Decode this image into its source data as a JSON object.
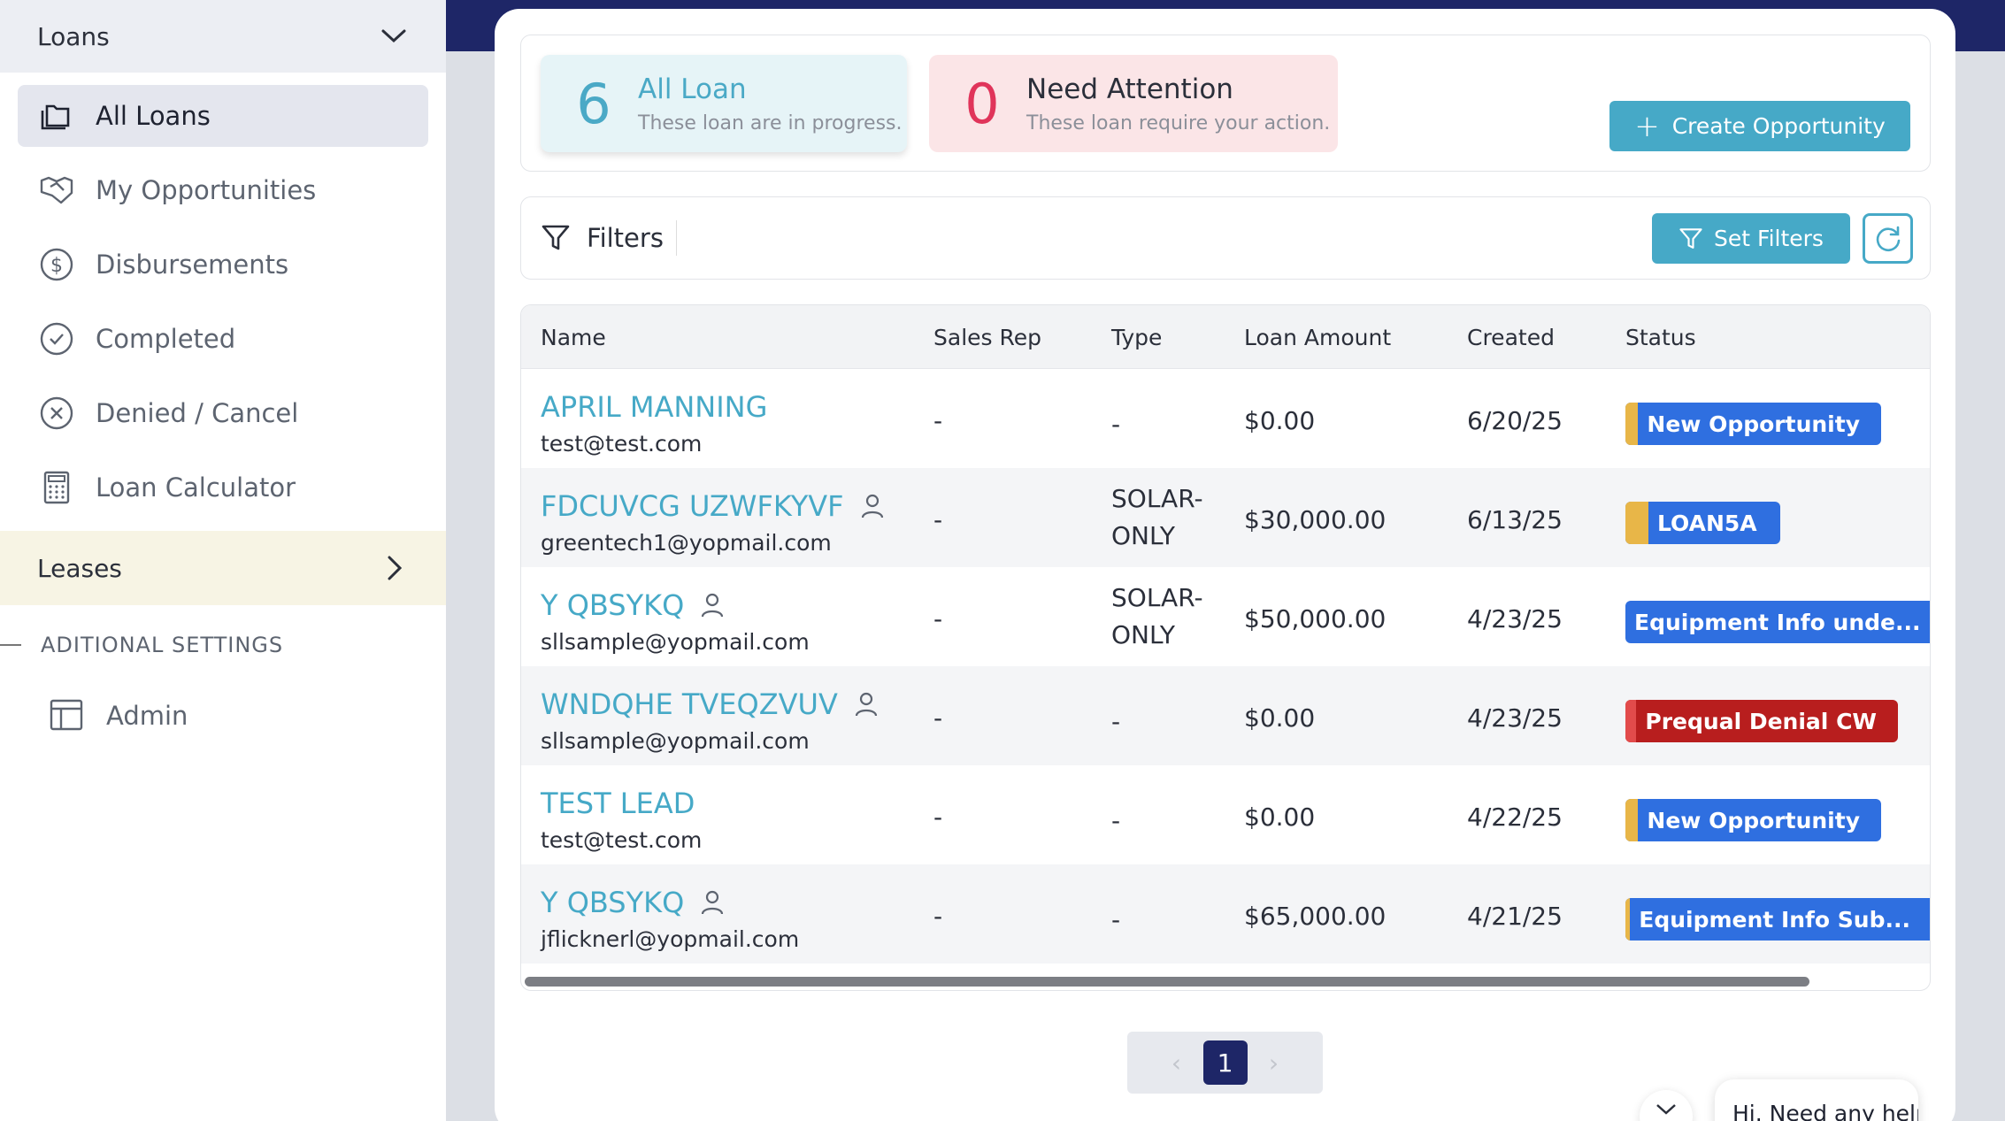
{
  "sidebar": {
    "loans_header": "Loans",
    "items": [
      {
        "label": "All Loans",
        "icon": "folders-icon",
        "active": true
      },
      {
        "label": "My Opportunities",
        "icon": "handshake-icon"
      },
      {
        "label": "Disbursements",
        "icon": "dollar-circle-icon"
      },
      {
        "label": "Completed",
        "icon": "check-circle-icon"
      },
      {
        "label": "Denied / Cancel",
        "icon": "x-circle-icon"
      },
      {
        "label": "Loan Calculator",
        "icon": "calculator-icon"
      }
    ],
    "leases_header": "Leases",
    "section_label": "ADITIONAL SETTINGS",
    "admin_label": "Admin"
  },
  "stats": {
    "all_loan": {
      "count": "6",
      "title": "All Loan",
      "subtitle": "These loan are in progress."
    },
    "need_attention": {
      "count": "0",
      "title": "Need Attention",
      "subtitle": "These loan require your action."
    }
  },
  "actions": {
    "create_opportunity": "Create Opportunity",
    "filters_label": "Filters",
    "set_filters": "Set Filters"
  },
  "table": {
    "headers": [
      "Name",
      "Sales Rep",
      "Type",
      "Loan Amount",
      "Created",
      "Status"
    ],
    "rows": [
      {
        "name": "APRIL MANNING",
        "email": "test@test.com",
        "has_user_icon": false,
        "sales_rep": "-",
        "type_line1": "-",
        "type_line2": "",
        "amount": "$0.00",
        "created": "6/20/25",
        "status": "New Opportunity",
        "status_color": "#2f6fe0",
        "status_strip": "#e8b648"
      },
      {
        "name": "FDCUVCG UZWFKYVF",
        "email": "greentech1@yopmail.com",
        "has_user_icon": true,
        "sales_rep": "-",
        "type_line1": "SOLAR-",
        "type_line2": "ONLY",
        "amount": "$30,000.00",
        "created": "6/13/25",
        "status": "LOAN5A",
        "status_color": "#2f6fe0",
        "status_strip": "#e8b648"
      },
      {
        "name": "Y QBSYKQ",
        "email": "sllsample@yopmail.com",
        "has_user_icon": true,
        "sales_rep": "-",
        "type_line1": "SOLAR-",
        "type_line2": "ONLY",
        "amount": "$50,000.00",
        "created": "4/23/25",
        "status": "Equipment Info unde...",
        "status_color": "#2f6fe0",
        "status_strip": "#e8b648"
      },
      {
        "name": "WNDQHE TVEQZVUV",
        "email": "sllsample@yopmail.com",
        "has_user_icon": true,
        "sales_rep": "-",
        "type_line1": "-",
        "type_line2": "",
        "amount": "$0.00",
        "created": "4/23/25",
        "status": "Prequal Denial CW",
        "status_color": "#b81e1e",
        "status_strip": "#e24b4b"
      },
      {
        "name": "TEST LEAD",
        "email": "test@test.com",
        "has_user_icon": false,
        "sales_rep": "-",
        "type_line1": "-",
        "type_line2": "",
        "amount": "$0.00",
        "created": "4/22/25",
        "status": "New Opportunity",
        "status_color": "#2f6fe0",
        "status_strip": "#e8b648"
      },
      {
        "name": "Y QBSYKQ",
        "email": "jflicknerl@yopmail.com",
        "has_user_icon": true,
        "sales_rep": "-",
        "type_line1": "-",
        "type_line2": "",
        "amount": "$65,000.00",
        "created": "4/21/25",
        "status": "Equipment Info Sub...",
        "status_color": "#2f6fe0",
        "status_strip": "#e8b648"
      }
    ]
  },
  "pagination": {
    "current": "1",
    "prev": "‹",
    "next": "›"
  },
  "chat": {
    "text": "Hi. Need any help?"
  },
  "colors": {
    "accent": "#46a9c7",
    "navy": "#1e2667",
    "alert": "#e0345a"
  }
}
